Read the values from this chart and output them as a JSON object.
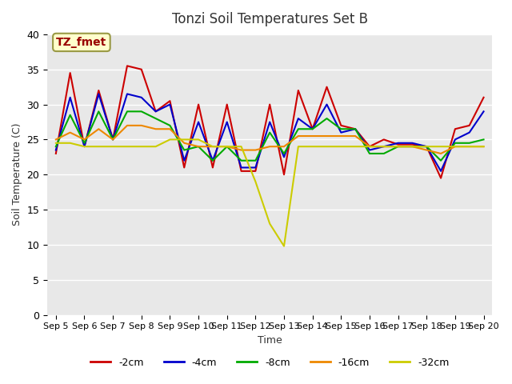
{
  "title": "Tonzi Soil Temperatures Set B",
  "xlabel": "Time",
  "ylabel": "Soil Temperature (C)",
  "annotation": "TZ_fmet",
  "ylim": [
    0,
    40
  ],
  "x_tick_labels": [
    "Sep 5",
    "Sep 6",
    "Sep 7",
    "Sep 8",
    "Sep 9",
    "Sep 10",
    "Sep 11",
    "Sep 12",
    "Sep 13",
    "Sep 14",
    "Sep 15",
    "Sep 16",
    "Sep 17",
    "Sep 18",
    "Sep 19",
    "Sep 20"
  ],
  "series": {
    "-2cm": {
      "color": "#cc0000",
      "lw": 1.5
    },
    "-4cm": {
      "color": "#0000cc",
      "lw": 1.5
    },
    "-8cm": {
      "color": "#00aa00",
      "lw": 1.5
    },
    "-16cm": {
      "color": "#ee8800",
      "lw": 1.5
    },
    "-32cm": {
      "color": "#cccc00",
      "lw": 1.5
    }
  },
  "data": {
    "x": [
      0,
      0.5,
      1,
      1.5,
      2,
      2.5,
      3,
      3.5,
      4,
      4.5,
      5,
      5.5,
      6,
      6.5,
      7,
      7.5,
      8,
      8.5,
      9,
      9.5,
      10,
      10.5,
      11,
      11.5,
      12,
      12.5,
      13,
      13.5,
      14,
      14.5,
      15
    ],
    "-2cm": [
      23,
      34.5,
      24,
      32,
      25,
      35.5,
      35,
      29,
      30.5,
      21,
      30,
      21,
      30,
      20.5,
      20.5,
      30,
      20,
      32,
      26.5,
      32.5,
      27,
      26.5,
      24,
      25,
      24.3,
      24.3,
      24,
      19.5,
      26.5,
      27,
      31
    ],
    "-4cm": [
      23.5,
      31,
      24,
      31.5,
      25,
      31.5,
      31,
      29,
      30,
      22,
      27.5,
      22,
      27.5,
      21,
      21,
      27.5,
      22.5,
      28,
      26.5,
      30,
      26,
      26.5,
      23.5,
      24,
      24.5,
      24.5,
      24,
      20.5,
      25,
      26,
      29
    ],
    "-8cm": [
      24,
      28.5,
      24.5,
      29,
      25,
      29,
      29,
      28,
      27,
      23.5,
      24,
      22,
      24,
      22,
      22,
      26,
      23,
      26.5,
      26.5,
      28,
      26.5,
      26.5,
      23,
      23,
      24,
      24,
      24,
      22,
      24.5,
      24.5,
      25
    ],
    "-16cm": [
      25,
      26,
      25,
      26.5,
      25,
      27,
      27,
      26.5,
      26.5,
      24.5,
      24,
      24,
      24,
      23.5,
      23.5,
      24,
      24,
      25.5,
      25.5,
      25.5,
      25.5,
      25.5,
      24,
      24,
      24,
      24,
      23.5,
      23,
      24,
      24,
      24
    ],
    "-32cm": [
      24.5,
      24.5,
      24,
      24,
      24,
      24,
      24,
      24,
      25,
      25,
      25,
      24,
      24,
      24,
      19,
      13,
      9.8,
      24,
      24,
      24,
      24,
      24,
      24,
      24,
      24,
      24,
      24,
      24,
      24,
      24,
      24
    ]
  },
  "background_color": "#e8e8e8",
  "grid_color": "#ffffff"
}
